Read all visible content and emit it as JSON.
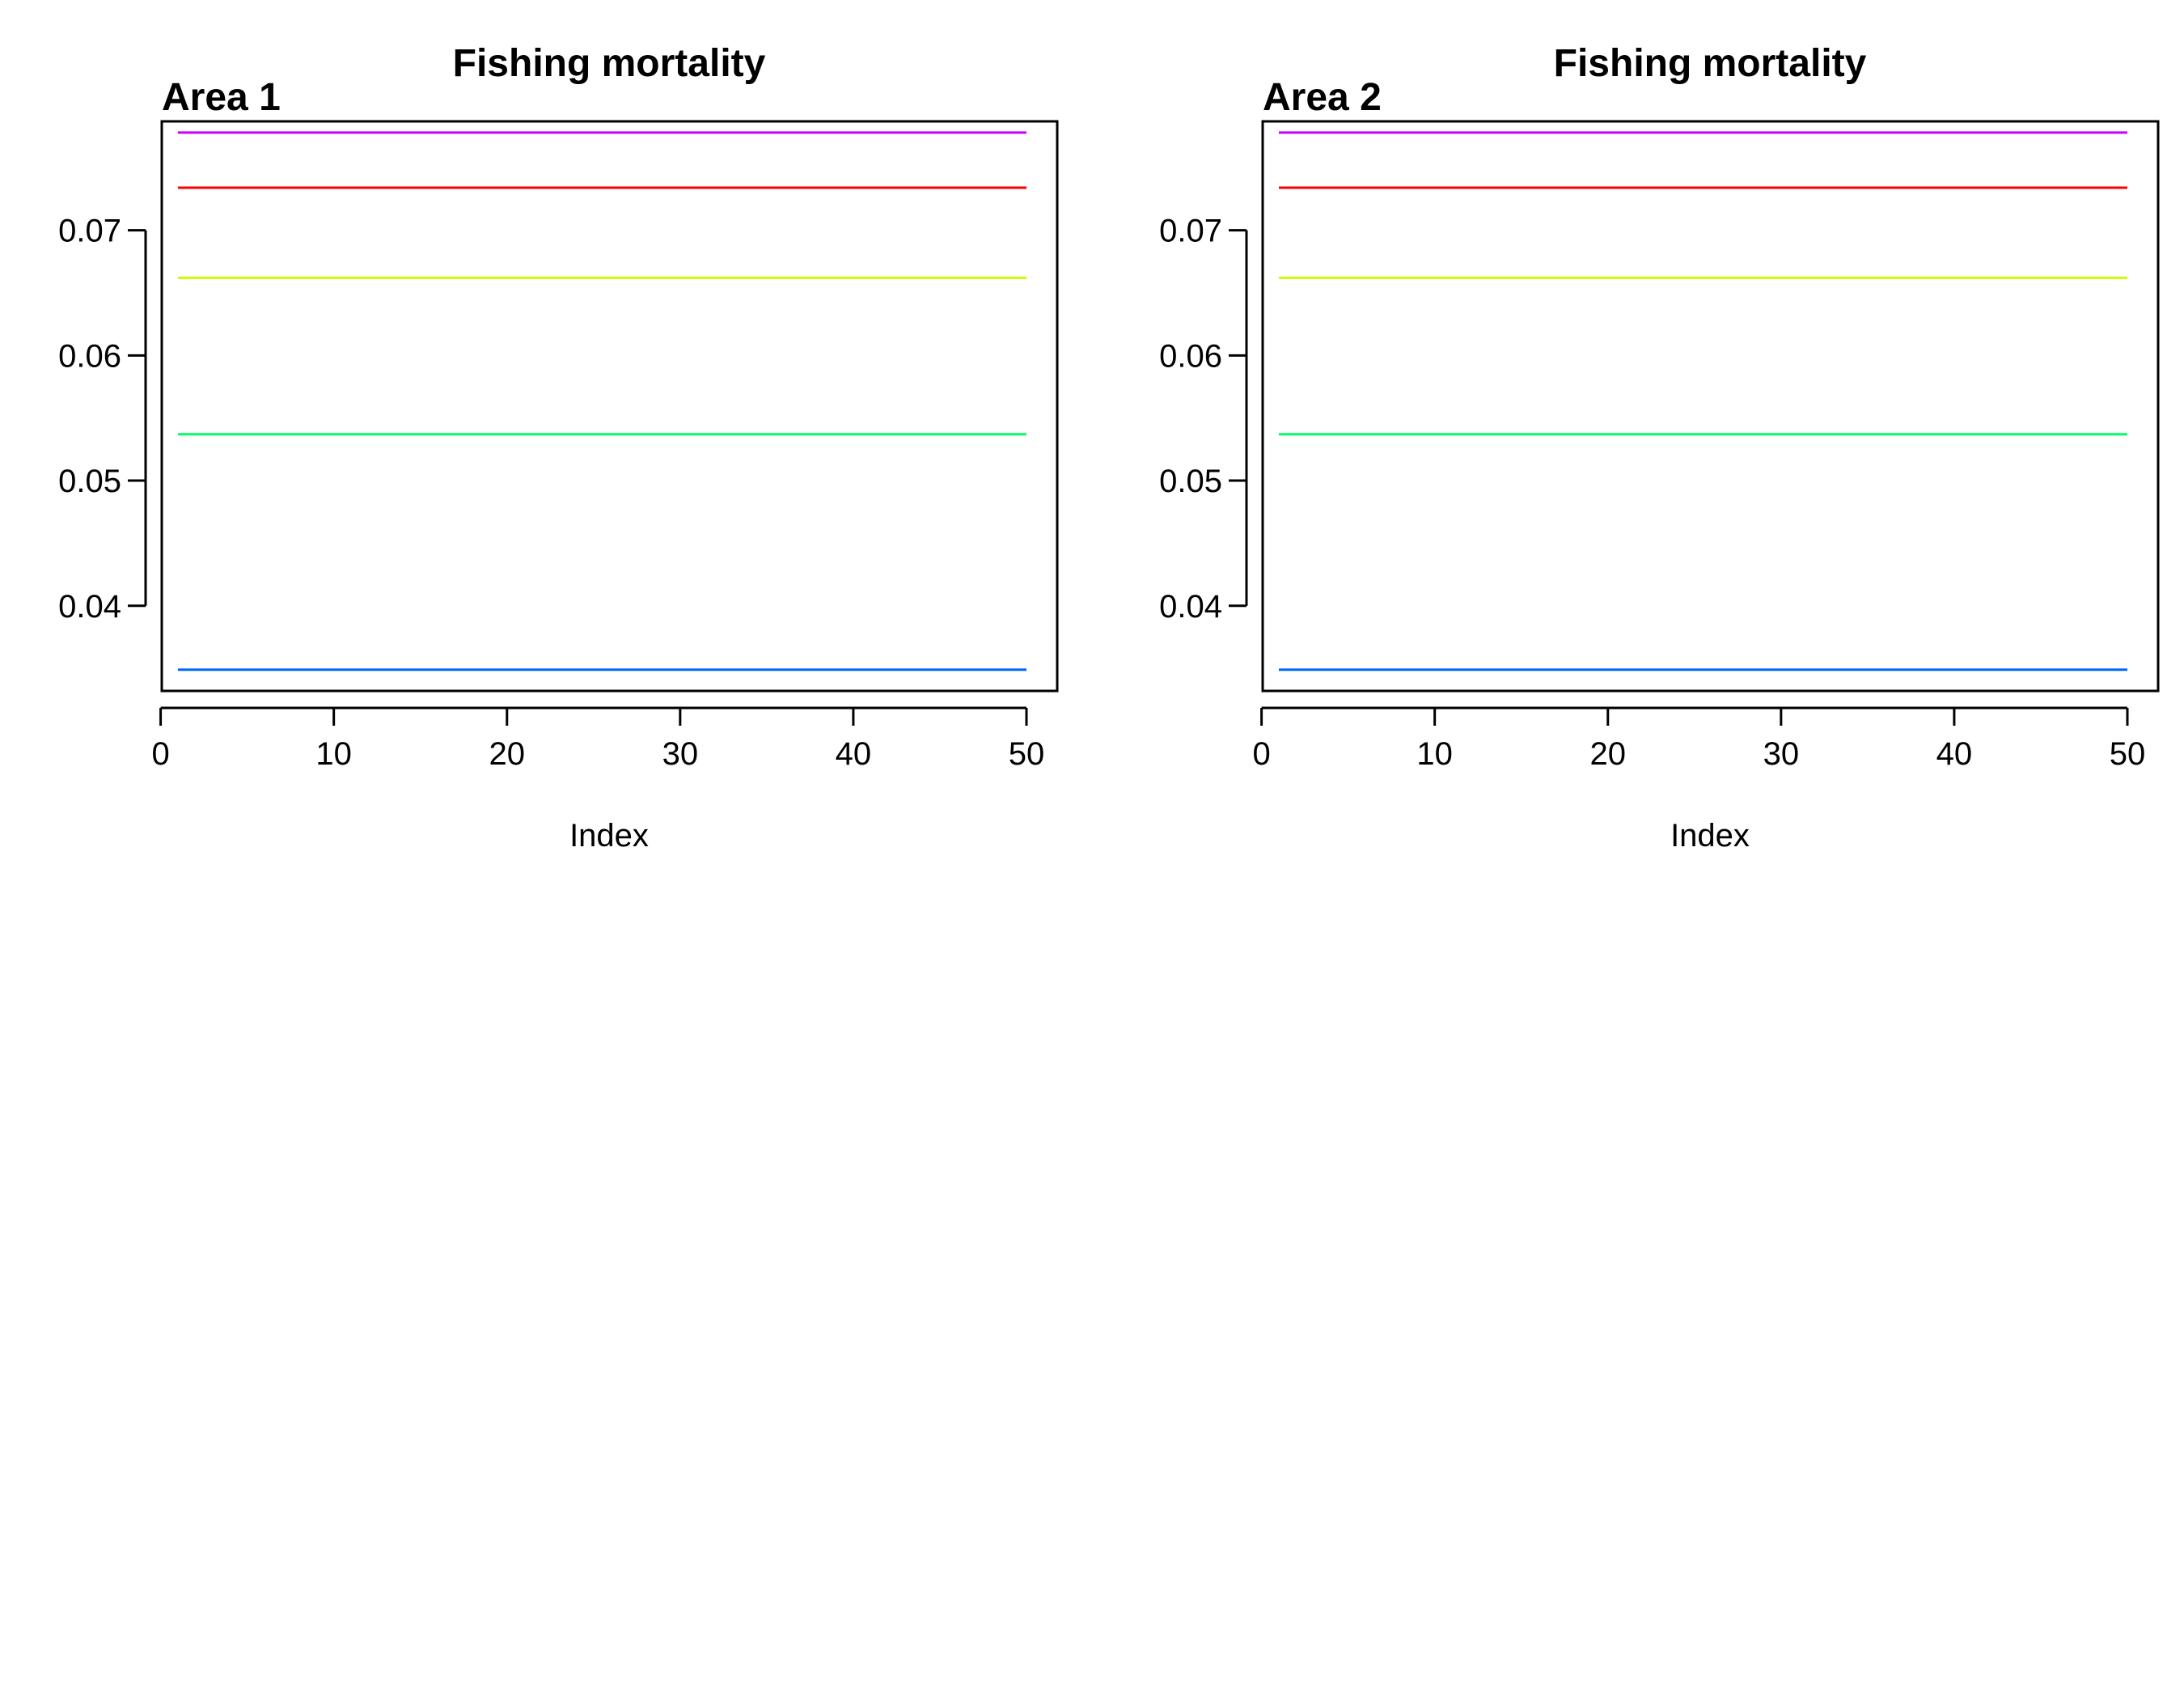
{
  "chart_data": [
    {
      "type": "line",
      "title": "Fishing mortality",
      "area_label": "Area 1",
      "xlabel": "Index",
      "ylabel": "",
      "xlim": [
        1,
        50
      ],
      "ylim": [
        0.0332,
        0.0787
      ],
      "x_ticks": [
        "0",
        "10",
        "20",
        "30",
        "40",
        "50"
      ],
      "y_ticks": [
        "0.04",
        "0.05",
        "0.06",
        "0.07"
      ],
      "x": [
        1,
        50
      ],
      "series": [
        {
          "color": "#cc00ff",
          "values": [
            0.0778,
            0.0778
          ]
        },
        {
          "color": "#ff0000",
          "values": [
            0.0734,
            0.0734
          ]
        },
        {
          "color": "#ccff00",
          "values": [
            0.0662,
            0.0662
          ]
        },
        {
          "color": "#00ff66",
          "values": [
            0.0537,
            0.0537
          ]
        },
        {
          "color": "#0066ff",
          "values": [
            0.0349,
            0.0349
          ]
        }
      ],
      "grid": false,
      "legend": "none"
    },
    {
      "type": "line",
      "title": "Fishing mortality",
      "area_label": "Area 2",
      "xlabel": "Index",
      "ylabel": "",
      "xlim": [
        1,
        50
      ],
      "ylim": [
        0.0332,
        0.0787
      ],
      "x_ticks": [
        "0",
        "10",
        "20",
        "30",
        "40",
        "50"
      ],
      "y_ticks": [
        "0.04",
        "0.05",
        "0.06",
        "0.07"
      ],
      "x": [
        1,
        50
      ],
      "series": [
        {
          "color": "#cc00ff",
          "values": [
            0.0778,
            0.0778
          ]
        },
        {
          "color": "#ff0000",
          "values": [
            0.0734,
            0.0734
          ]
        },
        {
          "color": "#ccff00",
          "values": [
            0.0662,
            0.0662
          ]
        },
        {
          "color": "#00ff66",
          "values": [
            0.0537,
            0.0537
          ]
        },
        {
          "color": "#0066ff",
          "values": [
            0.0349,
            0.0349
          ]
        }
      ],
      "grid": false,
      "legend": "none"
    }
  ]
}
